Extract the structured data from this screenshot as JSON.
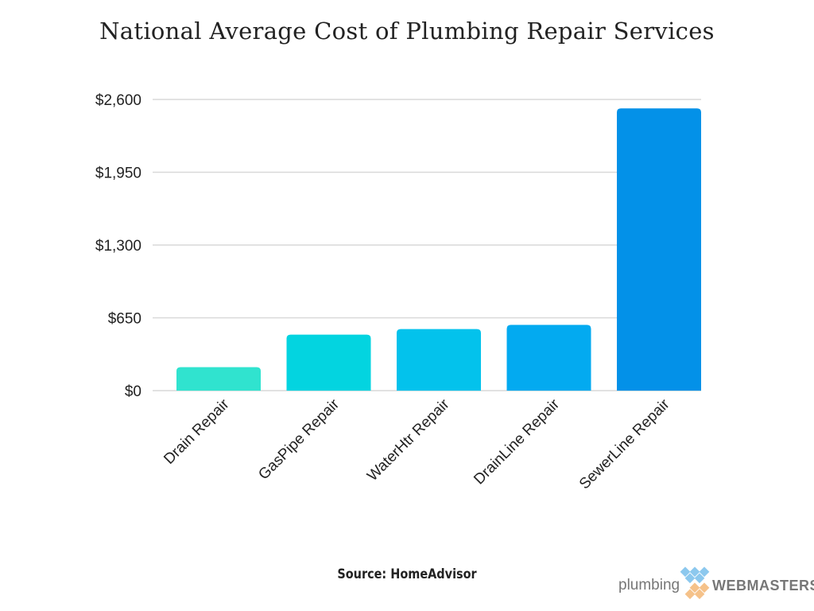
{
  "chart_data": {
    "type": "bar",
    "title": "National Average Cost of Plumbing Repair Services",
    "categories": [
      "Drain Repair",
      "GasPipe Repair",
      "WaterHtr Repair",
      "DrainLine Repair",
      "SewerLine Repair"
    ],
    "values": [
      210,
      500,
      550,
      587,
      2520
    ],
    "colors": [
      "#30e3cf",
      "#03d4e0",
      "#03c2ec",
      "#03aaf0",
      "#0391e8"
    ],
    "yticks": [
      0,
      650,
      1300,
      1950,
      2600
    ],
    "ytick_labels": [
      "$0",
      "$650",
      "$1,300",
      "$1,950",
      "$2,600"
    ],
    "ylim": [
      0,
      2600
    ],
    "grid": true,
    "xlabel": "",
    "ylabel": ""
  },
  "source": "Source: HomeAdvisor",
  "logo": {
    "left": "plumbing",
    "right": "WEBMASTERS"
  }
}
